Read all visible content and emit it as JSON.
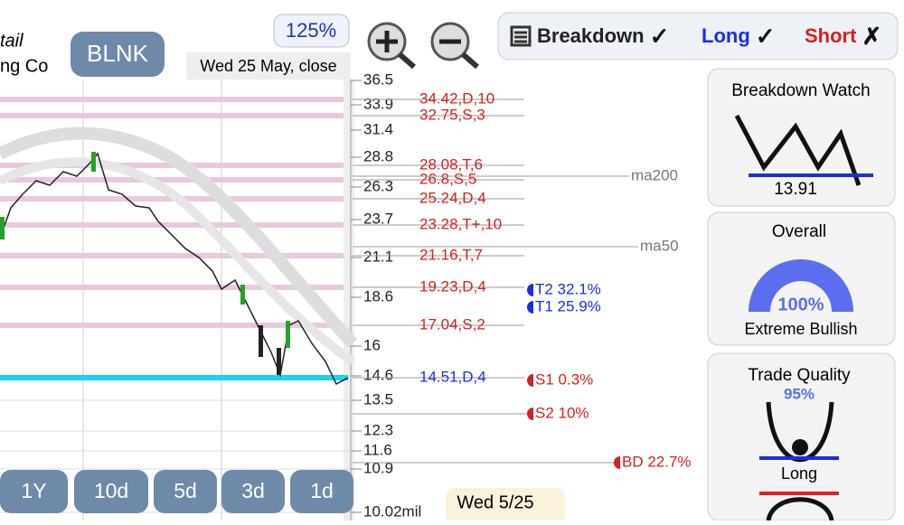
{
  "header": {
    "name_top": "tail",
    "name_bottom": "ng Co",
    "ticker": "BLNK",
    "zoom": "125%",
    "date": "Wed 25 May, close"
  },
  "toolbar": [
    {
      "label": "Breakdown",
      "mark": "✓"
    },
    {
      "label": "Long",
      "mark": "✓"
    },
    {
      "label": "Short",
      "mark": "✗"
    }
  ],
  "price_axis": [
    "36.5",
    "33.9",
    "31.4",
    "28.8",
    "26.3",
    "23.7",
    "21.1",
    "18.6",
    "16",
    "14.6",
    "13.5",
    "12.3",
    "11.6",
    "10.9",
    "10.02mil"
  ],
  "levels": [
    "34.42,D,10",
    "32.75,S,3",
    "28.08,T,6",
    "26.8,S,5",
    "25.24,D,4",
    "23.28,T+,10",
    "21.16,T,7",
    "19.23,D,4",
    "17.04,S,2",
    "14.51,D,4"
  ],
  "moving_averages": [
    "ma200",
    "ma50"
  ],
  "targets": [
    "T2 32.1%",
    "T1 25.9%",
    "S1 0.3%",
    "S2 10%",
    "BD 22.7%"
  ],
  "ranges": [
    "1Y",
    "10d",
    "5d",
    "3d",
    "1d"
  ],
  "footer_date": "Wed 5/25",
  "panels": {
    "breakdown_watch": {
      "title": "Breakdown Watch",
      "value": "13.91"
    },
    "overall": {
      "title": "Overall",
      "value": "100%",
      "label": "Extreme Bullish"
    },
    "trade_quality": {
      "title": "Trade Quality",
      "value": "95%",
      "label": "Long"
    }
  }
}
